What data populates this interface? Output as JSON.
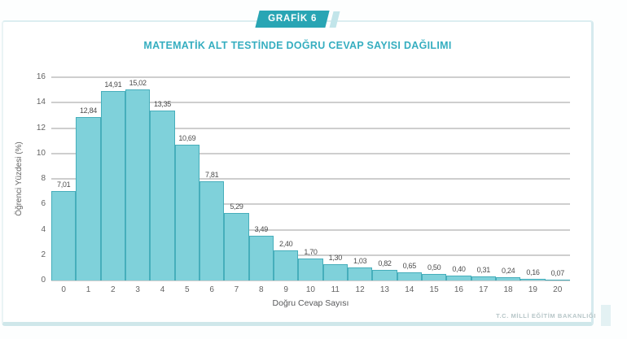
{
  "page": {
    "badge": "GRAFİK 6",
    "footer": "T.C. MİLLİ EĞİTİM BAKANLIĞI"
  },
  "colors": {
    "badge_bg": "#29a5b4",
    "badge_accent": "#c2e5ea",
    "title_text": "#36aebc",
    "bar_fill": "#7fd1da",
    "bar_border": "#46aebb",
    "gridline": "#9c9c9c",
    "axis_text": "#636363",
    "card_border": "#d6eaee",
    "footer_text": "#b7c6c8"
  },
  "chart_data": {
    "type": "bar",
    "title": "MATEMATİK ALT TESTİNDE DOĞRU CEVAP SAYISI DAĞILIMI",
    "xlabel": "Doğru Cevap Sayısı",
    "ylabel": "Öğrenci Yüzdesi (%)",
    "categories": [
      "0",
      "1",
      "2",
      "3",
      "4",
      "5",
      "6",
      "7",
      "8",
      "9",
      "10",
      "11",
      "12",
      "13",
      "14",
      "15",
      "16",
      "17",
      "18",
      "19",
      "20"
    ],
    "values": [
      7.01,
      12.84,
      14.91,
      15.02,
      13.35,
      10.69,
      7.81,
      5.29,
      3.49,
      2.4,
      1.7,
      1.3,
      1.03,
      0.82,
      0.65,
      0.5,
      0.4,
      0.31,
      0.24,
      0.16,
      0.07
    ],
    "value_labels": [
      "7,01",
      "12,84",
      "14,91",
      "15,02",
      "13,35",
      "10,69",
      "7,81",
      "5,29",
      "3,49",
      "2,40",
      "1,70",
      "1,30",
      "1,03",
      "0,82",
      "0,65",
      "0,50",
      "0,40",
      "0,31",
      "0,24",
      "0,16",
      "0,07"
    ],
    "ylim": [
      0,
      16
    ],
    "yticks": [
      0,
      2,
      4,
      6,
      8,
      10,
      12,
      14,
      16
    ],
    "grid": true,
    "legend": false
  }
}
